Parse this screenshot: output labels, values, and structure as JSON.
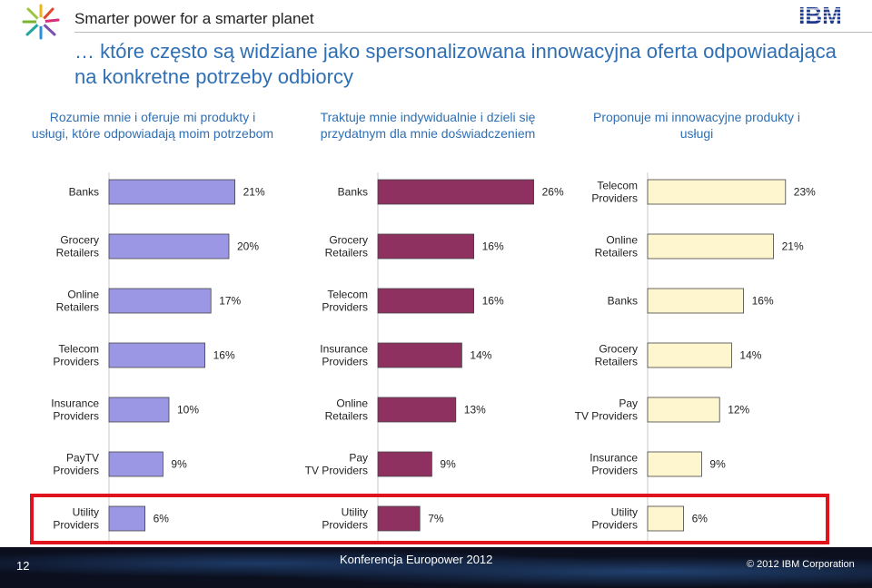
{
  "header": {
    "tagline": "Smarter power for a smarter planet",
    "brand": "IBM"
  },
  "title": "… które często są widziane jako spersonalizowana innowacyjna oferta odpowiadająca na konkretne potrzeby odbiorcy",
  "columns": [
    {
      "heading": "Rozumie mnie i oferuje mi produkty i usługi, które odpowiadają moim potrzebom"
    },
    {
      "heading": "Traktuje mnie indywidualnie i dzieli się przydatnym dla mnie doświadczeniem"
    },
    {
      "heading": "Proponuje mi innowacyjne produkty i usługi"
    }
  ],
  "chart_data": [
    {
      "type": "bar",
      "orientation": "horizontal",
      "color": "#9b97e4",
      "categories": [
        "Banks",
        "Grocery Retailers",
        "Online Retailers",
        "Telecom Providers",
        "Insurance Providers",
        "PayTV Providers",
        "Utility Providers"
      ],
      "values": [
        21,
        20,
        17,
        16,
        10,
        9,
        6
      ],
      "labels": [
        "21%",
        "20%",
        "17%",
        "16%",
        "10%",
        "9%",
        "6%"
      ]
    },
    {
      "type": "bar",
      "orientation": "horizontal",
      "color": "#8e3060",
      "categories": [
        "Banks",
        "Grocery Retailers",
        "Telecom Providers",
        "Insurance Providers",
        "Online Retailers",
        "Pay TV Providers",
        "Utility Providers"
      ],
      "values": [
        26,
        16,
        16,
        14,
        13,
        9,
        7
      ],
      "labels": [
        "26%",
        "16%",
        "16%",
        "14%",
        "13%",
        "9%",
        "7%"
      ]
    },
    {
      "type": "bar",
      "orientation": "horizontal",
      "color": "#fdf6cf",
      "categories": [
        "Telecom Providers",
        "Online Retailers",
        "Banks",
        "Grocery Retailers",
        "Pay TV Providers",
        "Insurance Providers",
        "Utility Providers"
      ],
      "values": [
        23,
        21,
        16,
        14,
        12,
        9,
        6
      ],
      "labels": [
        "23%",
        "21%",
        "16%",
        "14%",
        "12%",
        "9%",
        "6%"
      ]
    }
  ],
  "footer": {
    "page": "12",
    "event": "Konferencja Europower 2012",
    "copyright": "© 2012 IBM Corporation"
  }
}
